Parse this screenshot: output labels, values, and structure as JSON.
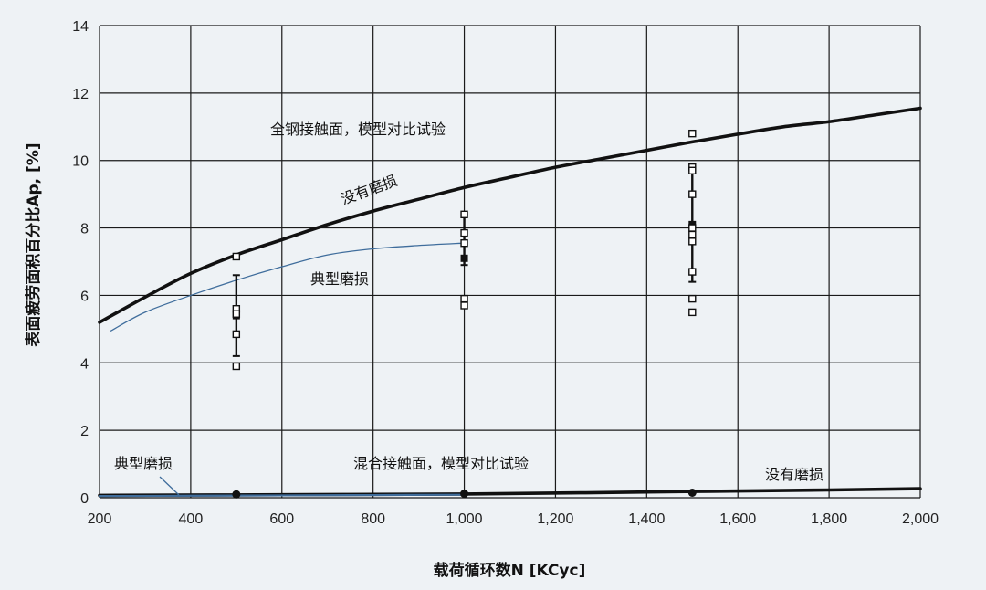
{
  "chart_data": {
    "type": "line",
    "xlabel": "载荷循环数N [KCyc]",
    "ylabel": "表面疲劳面积百分比Ap, [%]",
    "xlim": [
      200,
      2000
    ],
    "ylim": [
      0,
      14
    ],
    "x_ticks": [
      200,
      400,
      600,
      800,
      1000,
      1200,
      1400,
      1600,
      1800,
      2000
    ],
    "x_tick_labels": [
      "200",
      "400",
      "600",
      "800",
      "1,000",
      "1,200",
      "1,400",
      "1,600",
      "1,800",
      "2,000"
    ],
    "y_ticks": [
      0,
      2,
      4,
      6,
      8,
      10,
      12,
      14
    ],
    "grid": true,
    "colors": {
      "black": "#111111",
      "blue": "#3f6d9c",
      "grid": "#1a1a1a"
    },
    "series": [
      {
        "label_ref": "full_no_wear",
        "style": "black-thick",
        "x": [
          200,
          300,
          400,
          500,
          600,
          700,
          800,
          900,
          1000,
          1100,
          1200,
          1300,
          1400,
          1500,
          1600,
          1700,
          1800,
          1900,
          2000
        ],
        "y": [
          5.2,
          5.95,
          6.65,
          7.2,
          7.65,
          8.1,
          8.5,
          8.85,
          9.2,
          9.5,
          9.8,
          10.05,
          10.3,
          10.55,
          10.78,
          11.0,
          11.15,
          11.35,
          11.55
        ]
      },
      {
        "label_ref": "full_typical_wear",
        "style": "blue-thin",
        "x": [
          225,
          300,
          400,
          500,
          600,
          700,
          800,
          900,
          1000
        ],
        "y": [
          4.95,
          5.5,
          6.0,
          6.45,
          6.85,
          7.2,
          7.38,
          7.48,
          7.55
        ]
      },
      {
        "label_ref": "mixed_no_wear",
        "style": "black-thick",
        "x": [
          200,
          600,
          1000,
          1400,
          1800,
          2000
        ],
        "y": [
          0.07,
          0.09,
          0.11,
          0.17,
          0.23,
          0.27
        ]
      },
      {
        "label_ref": "mixed_typical_wear",
        "style": "blue-medium",
        "x": [
          200,
          400,
          600,
          800,
          1000
        ],
        "y": [
          0.05,
          0.06,
          0.07,
          0.08,
          0.09
        ]
      }
    ],
    "test_points": [
      {
        "x": 500,
        "y": [
          7.15,
          5.6,
          5.45,
          4.85,
          3.9
        ]
      },
      {
        "x": 1000,
        "y": [
          8.4,
          7.85,
          7.55,
          5.9,
          5.7
        ]
      },
      {
        "x": 1500,
        "y": [
          10.8,
          9.8,
          9.7,
          9.0,
          8.0,
          7.8,
          7.6,
          6.7,
          5.9,
          5.5
        ]
      }
    ],
    "error_bars": [
      {
        "x": 500,
        "low": 4.2,
        "high": 6.6,
        "mean": 5.4
      },
      {
        "x": 1000,
        "low": 6.9,
        "high": 8.4,
        "mean": 7.1
      },
      {
        "x": 1500,
        "low": 6.4,
        "high": 9.9,
        "mean": 8.1
      }
    ],
    "mixed_markers": [
      {
        "x": 500,
        "y": 0.1
      },
      {
        "x": 1000,
        "y": 0.12
      },
      {
        "x": 1500,
        "y": 0.15
      }
    ],
    "annotations": {
      "full_title": "全钢接触面，模型对比试验",
      "full_no_wear": "没有磨损",
      "full_typical_wear": "典型磨损",
      "mixed_title": "混合接触面，模型对比试验",
      "mixed_no_wear": "没有磨损",
      "mixed_typical_wear": "典型磨损"
    }
  }
}
